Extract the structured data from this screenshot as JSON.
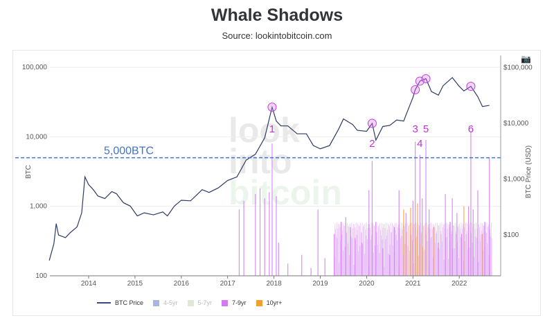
{
  "title": "Whale Shadows",
  "subtitle": "Source: lookintobitcoin.com",
  "watermark": [
    "look",
    "into",
    "bitcoin"
  ],
  "chart_data": {
    "type": "bar+line",
    "left_axis": {
      "label": "BTC",
      "scale": "log",
      "range": [
        100,
        100000
      ],
      "ticks": [
        "100",
        "1,000",
        "10,000",
        "100,000"
      ]
    },
    "right_axis": {
      "label": "BTC Price (USD)",
      "scale": "log",
      "ticks": [
        "$100",
        "$1,000",
        "$10,000",
        "$100,000"
      ]
    },
    "x_ticks": [
      "2014",
      "2015",
      "2016",
      "2017",
      "2018",
      "2019",
      "2020",
      "2021",
      "2022"
    ],
    "threshold": {
      "label": "5,000BTC",
      "value": 5000,
      "color": "#4472c4"
    },
    "legend": [
      {
        "name": "BTC Price",
        "color": "#2c3a63",
        "active": true
      },
      {
        "name": "4-5yr",
        "color": "#aab4e0",
        "active": false
      },
      {
        "name": "5-7yr",
        "color": "#dfe8d8",
        "active": false
      },
      {
        "name": "7-9yr",
        "color": "#d07cf0",
        "active": true
      },
      {
        "name": "10yr+",
        "color": "#f0a030",
        "active": true
      }
    ],
    "price": [
      [
        2013.15,
        35
      ],
      [
        2013.25,
        70
      ],
      [
        2013.3,
        160
      ],
      [
        2013.35,
        100
      ],
      [
        2013.5,
        90
      ],
      [
        2013.6,
        110
      ],
      [
        2013.75,
        140
      ],
      [
        2013.85,
        250
      ],
      [
        2013.92,
        1100
      ],
      [
        2014.0,
        800
      ],
      [
        2014.1,
        650
      ],
      [
        2014.2,
        500
      ],
      [
        2014.35,
        450
      ],
      [
        2014.5,
        600
      ],
      [
        2014.6,
        550
      ],
      [
        2014.75,
        380
      ],
      [
        2014.9,
        330
      ],
      [
        2015.05,
        220
      ],
      [
        2015.2,
        250
      ],
      [
        2015.4,
        230
      ],
      [
        2015.6,
        260
      ],
      [
        2015.7,
        220
      ],
      [
        2015.85,
        330
      ],
      [
        2016.0,
        420
      ],
      [
        2016.2,
        410
      ],
      [
        2016.45,
        650
      ],
      [
        2016.6,
        580
      ],
      [
        2016.8,
        700
      ],
      [
        2017.0,
        950
      ],
      [
        2017.2,
        1100
      ],
      [
        2017.4,
        2200
      ],
      [
        2017.6,
        2800
      ],
      [
        2017.8,
        5500
      ],
      [
        2017.96,
        19500
      ],
      [
        2018.05,
        11000
      ],
      [
        2018.15,
        9000
      ],
      [
        2018.3,
        9000
      ],
      [
        2018.5,
        6500
      ],
      [
        2018.7,
        6500
      ],
      [
        2018.85,
        4000
      ],
      [
        2019.0,
        3500
      ],
      [
        2019.2,
        4000
      ],
      [
        2019.4,
        8000
      ],
      [
        2019.5,
        12000
      ],
      [
        2019.7,
        9500
      ],
      [
        2019.8,
        7500
      ],
      [
        2020.0,
        7200
      ],
      [
        2020.12,
        10000
      ],
      [
        2020.2,
        5000
      ],
      [
        2020.35,
        8800
      ],
      [
        2020.5,
        9200
      ],
      [
        2020.65,
        11500
      ],
      [
        2020.8,
        11000
      ],
      [
        2020.9,
        18000
      ],
      [
        2021.0,
        29000
      ],
      [
        2021.05,
        40000
      ],
      [
        2021.15,
        57000
      ],
      [
        2021.28,
        63000
      ],
      [
        2021.4,
        37000
      ],
      [
        2021.55,
        32000
      ],
      [
        2021.65,
        47000
      ],
      [
        2021.85,
        66000
      ],
      [
        2022.0,
        46000
      ],
      [
        2022.1,
        38000
      ],
      [
        2022.25,
        46000
      ],
      [
        2022.4,
        30000
      ],
      [
        2022.5,
        20000
      ],
      [
        2022.65,
        21000
      ]
    ],
    "highlights": [
      {
        "label": "1",
        "x": 2017.96,
        "price": 19500,
        "bar": 8000
      },
      {
        "label": "2",
        "x": 2020.12,
        "price": 10000,
        "bar": 4500
      },
      {
        "label": "3",
        "x": 2021.05,
        "price": 40000,
        "bar": 8500
      },
      {
        "label": "4",
        "x": 2021.15,
        "price": 57000,
        "bar": 5500
      },
      {
        "label": "5",
        "x": 2021.28,
        "price": 63000,
        "bar": 9000
      },
      {
        "label": "6",
        "x": 2022.25,
        "price": 46000,
        "bar": 12000
      }
    ],
    "bars": [
      [
        2017.25,
        900,
        "7-9yr"
      ],
      [
        2017.35,
        1200,
        "7-9yr"
      ],
      [
        2017.6,
        1500,
        "7-9yr"
      ],
      [
        2017.7,
        1800,
        "7-9yr"
      ],
      [
        2017.8,
        1300,
        "7-9yr"
      ],
      [
        2017.9,
        1600,
        "7-9yr"
      ],
      [
        2017.96,
        8000,
        "7-9yr"
      ],
      [
        2018.05,
        1400,
        "7-9yr"
      ],
      [
        2018.1,
        300,
        "7-9yr"
      ],
      [
        2018.3,
        150,
        "7-9yr"
      ],
      [
        2018.6,
        200,
        "7-9yr"
      ],
      [
        2018.8,
        130,
        "7-9yr"
      ],
      [
        2018.95,
        900,
        "7-9yr"
      ],
      [
        2019.1,
        180,
        "7-9yr"
      ],
      [
        2019.3,
        400,
        "7-9yr"
      ],
      [
        2019.45,
        600,
        "7-9yr"
      ],
      [
        2019.55,
        700,
        "7-9yr"
      ],
      [
        2019.65,
        500,
        "7-9yr"
      ],
      [
        2019.75,
        350,
        "7-9yr"
      ],
      [
        2019.9,
        300,
        "7-9yr"
      ],
      [
        2020.05,
        1700,
        "7-9yr"
      ],
      [
        2020.12,
        4500,
        "7-9yr"
      ],
      [
        2020.2,
        600,
        "7-9yr"
      ],
      [
        2020.35,
        250,
        "7-9yr"
      ],
      [
        2020.5,
        200,
        "7-9yr"
      ],
      [
        2020.6,
        500,
        "7-9yr"
      ],
      [
        2020.7,
        1700,
        "7-9yr"
      ],
      [
        2020.8,
        900,
        "10yr+"
      ],
      [
        2020.85,
        800,
        "7-9yr"
      ],
      [
        2020.95,
        950,
        "10yr+"
      ],
      [
        2021.0,
        1200,
        "7-9yr"
      ],
      [
        2021.05,
        8500,
        "7-9yr"
      ],
      [
        2021.1,
        1100,
        "10yr+"
      ],
      [
        2021.15,
        5500,
        "7-9yr"
      ],
      [
        2021.2,
        1300,
        "7-9yr"
      ],
      [
        2021.28,
        9000,
        "7-9yr"
      ],
      [
        2021.35,
        900,
        "7-9yr"
      ],
      [
        2021.45,
        500,
        "10yr+"
      ],
      [
        2021.55,
        300,
        "7-9yr"
      ],
      [
        2021.7,
        1500,
        "7-9yr"
      ],
      [
        2021.8,
        600,
        "7-9yr"
      ],
      [
        2021.85,
        1300,
        "7-9yr"
      ],
      [
        2021.95,
        800,
        "7-9yr"
      ],
      [
        2022.05,
        400,
        "7-9yr"
      ],
      [
        2022.1,
        1000,
        "10yr+"
      ],
      [
        2022.2,
        1000,
        "7-9yr"
      ],
      [
        2022.25,
        12000,
        "7-9yr"
      ],
      [
        2022.3,
        900,
        "7-9yr"
      ],
      [
        2022.4,
        1700,
        "7-9yr"
      ],
      [
        2022.5,
        400,
        "10yr+"
      ],
      [
        2022.55,
        600,
        "7-9yr"
      ],
      [
        2022.65,
        5000,
        "7-9yr"
      ]
    ]
  }
}
